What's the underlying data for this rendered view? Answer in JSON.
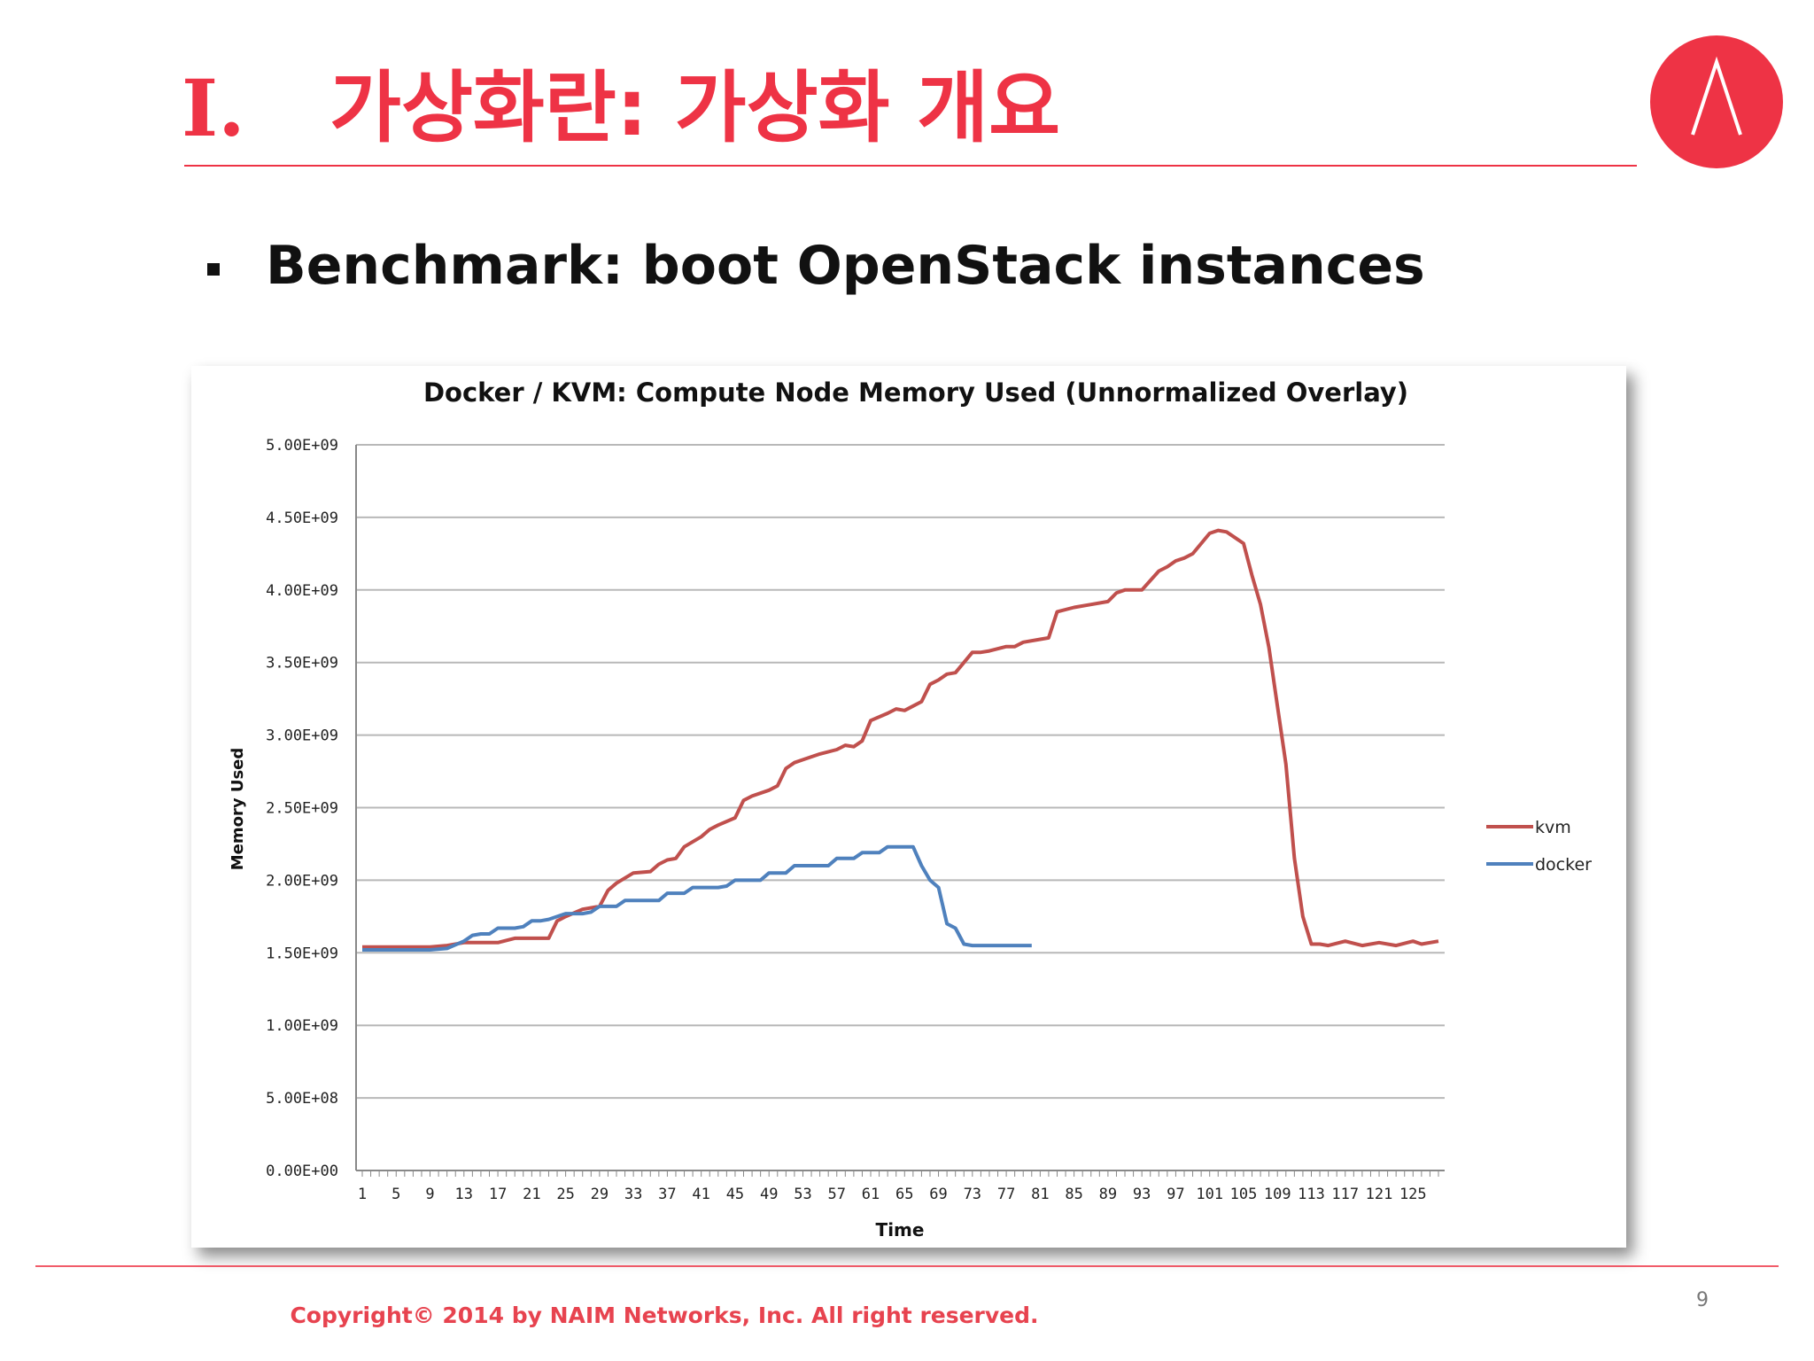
{
  "slide": {
    "section_number": "I.",
    "title": "가상화란: 가상화 개요",
    "bullet": "Benchmark: boot OpenStack instances",
    "page_number": "9",
    "copyright": "Copyright© 2014 by NAIM Networks, Inc. All right reserved."
  },
  "colors": {
    "accent": "#ee3345",
    "kvm": "#c0504d",
    "docker": "#4f81bd"
  },
  "chart_data": {
    "type": "line",
    "title": "Docker / KVM: Compute Node Memory Used (Unnormalized Overlay)",
    "xlabel": "Time",
    "ylabel": "Memory Used",
    "ylim": [
      0,
      5000000000
    ],
    "yticks": [
      "0.00E+00",
      "5.00E+08",
      "1.00E+09",
      "1.50E+09",
      "2.00E+09",
      "2.50E+09",
      "3.00E+09",
      "3.50E+09",
      "4.00E+09",
      "4.50E+09",
      "5.00E+09"
    ],
    "yticks_values": [
      0,
      500000000,
      1000000000,
      1500000000,
      2000000000,
      2500000000,
      3000000000,
      3500000000,
      4000000000,
      4500000000,
      5000000000
    ],
    "xlim": [
      1,
      128
    ],
    "xticks": [
      "1",
      "5",
      "9",
      "13",
      "17",
      "21",
      "25",
      "29",
      "33",
      "37",
      "41",
      "45",
      "49",
      "53",
      "57",
      "61",
      "65",
      "69",
      "73",
      "77",
      "81",
      "85",
      "89",
      "93",
      "97",
      "101",
      "105",
      "109",
      "113",
      "117",
      "121",
      "125"
    ],
    "grid": true,
    "legend_position": "right",
    "series": [
      {
        "name": "kvm",
        "x": [
          1,
          5,
          9,
          11,
          13,
          15,
          17,
          19,
          21,
          23,
          24,
          25,
          27,
          29,
          30,
          31,
          33,
          35,
          36,
          37,
          38,
          39,
          41,
          42,
          43,
          45,
          46,
          47,
          49,
          50,
          51,
          52,
          53,
          55,
          57,
          58,
          59,
          60,
          61,
          63,
          64,
          65,
          66,
          67,
          68,
          69,
          70,
          71,
          73,
          74,
          75,
          77,
          78,
          79,
          81,
          82,
          83,
          85,
          87,
          89,
          90,
          91,
          93,
          95,
          96,
          97,
          98,
          99,
          101,
          102,
          103,
          104,
          105,
          106,
          107,
          108,
          109,
          110,
          111,
          112,
          113,
          114,
          115,
          117,
          119,
          121,
          123,
          125,
          126,
          128
        ],
        "y": [
          1540000000.0,
          1540000000.0,
          1540000000.0,
          1550000000.0,
          1570000000.0,
          1570000000.0,
          1570000000.0,
          1600000000.0,
          1600000000.0,
          1600000000.0,
          1720000000.0,
          1750000000.0,
          1800000000.0,
          1820000000.0,
          1930000000.0,
          1980000000.0,
          2050000000.0,
          2060000000.0,
          2110000000.0,
          2140000000.0,
          2150000000.0,
          2230000000.0,
          2300000000.0,
          2350000000.0,
          2380000000.0,
          2430000000.0,
          2550000000.0,
          2580000000.0,
          2620000000.0,
          2650000000.0,
          2770000000.0,
          2810000000.0,
          2830000000.0,
          2870000000.0,
          2900000000.0,
          2930000000.0,
          2920000000.0,
          2960000000.0,
          3100000000.0,
          3150000000.0,
          3180000000.0,
          3170000000.0,
          3200000000.0,
          3230000000.0,
          3350000000.0,
          3380000000.0,
          3420000000.0,
          3430000000.0,
          3570000000.0,
          3570000000.0,
          3580000000.0,
          3610000000.0,
          3610000000.0,
          3640000000.0,
          3660000000.0,
          3670000000.0,
          3850000000.0,
          3880000000.0,
          3900000000.0,
          3920000000.0,
          3980000000.0,
          4000000000.0,
          4000000000.0,
          4130000000.0,
          4160000000.0,
          4200000000.0,
          4220000000.0,
          4250000000.0,
          4390000000.0,
          4410000000.0,
          4400000000.0,
          4360000000.0,
          4320000000.0,
          4100000000.0,
          3900000000.0,
          3600000000.0,
          3200000000.0,
          2800000000.0,
          2150000000.0,
          1750000000.0,
          1560000000.0,
          1560000000.0,
          1550000000.0,
          1580000000.0,
          1550000000.0,
          1570000000.0,
          1550000000.0,
          1580000000.0,
          1560000000.0,
          1580000000.0
        ]
      },
      {
        "name": "docker",
        "x": [
          1,
          5,
          9,
          11,
          13,
          14,
          15,
          16,
          17,
          18,
          19,
          20,
          21,
          22,
          23,
          24,
          25,
          26,
          27,
          28,
          29,
          30,
          31,
          32,
          33,
          34,
          35,
          36,
          37,
          38,
          39,
          40,
          41,
          42,
          43,
          44,
          45,
          46,
          47,
          48,
          49,
          50,
          51,
          52,
          53,
          54,
          55,
          56,
          57,
          58,
          59,
          60,
          61,
          62,
          63,
          64,
          65,
          66,
          67,
          68,
          69,
          70,
          71,
          72,
          73,
          74,
          75,
          76,
          77,
          78,
          79,
          80
        ],
        "y": [
          1520000000.0,
          1520000000.0,
          1520000000.0,
          1530000000.0,
          1580000000.0,
          1620000000.0,
          1630000000.0,
          1630000000.0,
          1670000000.0,
          1670000000.0,
          1670000000.0,
          1680000000.0,
          1720000000.0,
          1720000000.0,
          1730000000.0,
          1750000000.0,
          1770000000.0,
          1770000000.0,
          1770000000.0,
          1780000000.0,
          1820000000.0,
          1820000000.0,
          1820000000.0,
          1860000000.0,
          1860000000.0,
          1860000000.0,
          1860000000.0,
          1860000000.0,
          1910000000.0,
          1910000000.0,
          1910000000.0,
          1950000000.0,
          1950000000.0,
          1950000000.0,
          1950000000.0,
          1960000000.0,
          2000000000.0,
          2000000000.0,
          2000000000.0,
          2000000000.0,
          2050000000.0,
          2050000000.0,
          2050000000.0,
          2100000000.0,
          2100000000.0,
          2100000000.0,
          2100000000.0,
          2100000000.0,
          2150000000.0,
          2150000000.0,
          2150000000.0,
          2190000000.0,
          2190000000.0,
          2190000000.0,
          2230000000.0,
          2230000000.0,
          2230000000.0,
          2230000000.0,
          2100000000.0,
          2000000000.0,
          1950000000.0,
          1700000000.0,
          1670000000.0,
          1560000000.0,
          1550000000.0,
          1550000000.0,
          1550000000.0,
          1550000000.0,
          1550000000.0,
          1550000000.0,
          1550000000.0,
          1550000000.0
        ]
      }
    ]
  }
}
